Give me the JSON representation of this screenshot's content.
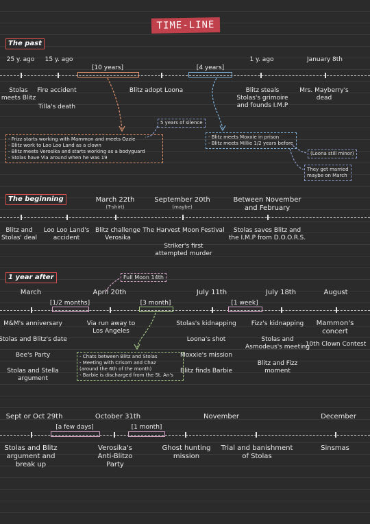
{
  "title": "TIME-LINE",
  "colors": {
    "background": "#2b2b2b",
    "title_bg": "#c0414b",
    "orange": "#e3956e",
    "blue": "#7fb0d8",
    "pink": "#d8a6c8",
    "green": "#a6c98a",
    "red": "#d9504f"
  },
  "sections": {
    "past": {
      "heading": "The past",
      "top_labels": [
        "25 y. ago",
        "15 y. ago",
        "[10 years]",
        "[4 years]",
        "1 y. ago",
        "January 8th"
      ],
      "bottom_labels": [
        [
          "Stolas",
          "meets Blitz"
        ],
        [
          "Fire accident"
        ],
        [
          "Tilla's death"
        ],
        [
          "Blitz adopt Loona"
        ],
        [
          "Blitz steals",
          "Stolas's grimoire",
          "and founds I.M.P"
        ],
        [
          "Mrs. Mayberry's",
          "dead"
        ]
      ],
      "note_silence": "5 years of silence",
      "box_orange": [
        "- Frizz starts working with Mammon and meets Ozzie",
        "- Blitz work to Loo Loo Land as a clown",
        "- Blitz meets Verosika and starts working as a bodyguard",
        "- Stolas have Via around when he was 19"
      ],
      "box_blue": [
        "- Blitz meets Moxxie in prison",
        "- Blitz meets Millie 1/2 years before"
      ],
      "note_minor": "(Loona still minor)",
      "note_married": [
        "They get married",
        "maybe on March"
      ]
    },
    "beginning": {
      "heading": "The beginning",
      "top_labels": [
        [
          "March 22th",
          "(T-shirt)"
        ],
        [
          "September 20th",
          "(maybe)"
        ],
        [
          "Between November",
          "and February"
        ]
      ],
      "bottom_labels": [
        [
          "Blitz and",
          "Stolas' deal"
        ],
        [
          "Loo Loo Land's",
          "accident"
        ],
        [
          "Blitz challenge",
          "Verosika"
        ],
        [
          "The Harvest Moon Festival"
        ],
        [
          "Striker's first",
          "attempted murder"
        ],
        [
          "Stolas saves Blitz and",
          "the I.M.P from D.O.O.R.S."
        ]
      ]
    },
    "year_after": {
      "heading": "1 year after",
      "note_moon": "Full Moon 14th",
      "top_labels": [
        "March",
        "April 20th",
        "July 11th",
        "July 18th",
        "August"
      ],
      "ranges": [
        "[1/2 months]",
        "[3 month]",
        "[1 week]"
      ],
      "bottom_labels": [
        [
          "M&M's anniversary"
        ],
        [
          "Stolas and Blitz's date"
        ],
        [
          "Bee's Party"
        ],
        [
          "Stolas and Stella",
          "argument"
        ],
        [
          "Via run away to",
          "Los Angeles"
        ],
        [
          "Stolas's kidnapping"
        ],
        [
          "Loona's shot"
        ],
        [
          "Moxxie's mission"
        ],
        [
          "Blitz finds Barbie"
        ],
        [
          "Fizz's kidnapping"
        ],
        [
          "Stolas and",
          "Asmodeus's meeting"
        ],
        [
          "Blitz and Fizz",
          "moment"
        ],
        [
          "Mammon's",
          "concert"
        ],
        [
          "10th Clown Contest"
        ]
      ],
      "box_green": [
        "- Chats between Blitz and Stolas",
        "- Meeting with Crisom and Chaz",
        "  (around the 6th of the month)",
        "- Barbie is discharged from the St. An's"
      ]
    },
    "last": {
      "top_labels": [
        "Sept or Oct 29th",
        "October 31th",
        "November",
        "December"
      ],
      "ranges": [
        "[a few days]",
        "[1 month]"
      ],
      "bottom_labels": [
        [
          "Stolas and Blitz",
          "argument and",
          "break up"
        ],
        [
          "Verosika's",
          "Anti-Blitzo",
          "Party"
        ],
        [
          "Ghost hunting",
          "mission"
        ],
        [
          "Trial and banishment",
          "of Stolas"
        ],
        [
          "Sinsmas"
        ]
      ]
    }
  }
}
